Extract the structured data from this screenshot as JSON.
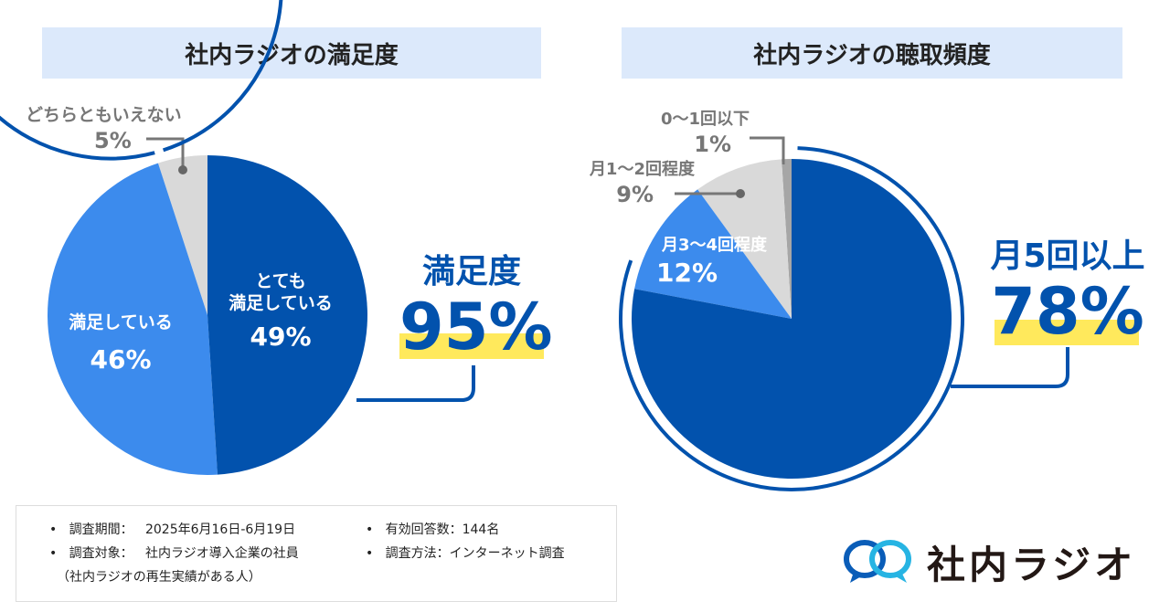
{
  "chart_data": [
    {
      "type": "pie",
      "title": "社内ラジオの満足度",
      "slices": [
        {
          "label": "とても満足している",
          "value": 49,
          "color": "#0252ad"
        },
        {
          "label": "満足している",
          "value": 46,
          "color": "#3c8bed"
        },
        {
          "label": "どちらともいえない",
          "value": 5,
          "color": "#d9d9d9"
        }
      ],
      "summary_label": "満足度",
      "summary_value": "95%"
    },
    {
      "type": "pie",
      "title": "社内ラジオの聴取頻度",
      "slices": [
        {
          "label": "月5回以上",
          "value": 78,
          "color": "#0252ad"
        },
        {
          "label": "月3〜4回程度",
          "value": 12,
          "color": "#3c8bed"
        },
        {
          "label": "月1〜2回程度",
          "value": 9,
          "color": "#d9d9d9"
        },
        {
          "label": "0〜1回以下",
          "value": 1,
          "color": "#a6a6a6"
        }
      ],
      "summary_label": "月5回以上",
      "summary_value": "78%"
    }
  ],
  "labels": {
    "c1": {
      "s0a": "とても",
      "s0b": "満足している",
      "s0v": "49%",
      "s1": "満足している",
      "s1v": "46%",
      "s2": "どちらともいえない",
      "s2v": "5%"
    },
    "c2": {
      "s1": "月3〜4回程度",
      "s1v": "12%",
      "s2": "月1〜2回程度",
      "s2v": "9%",
      "s3": "0〜1回以下",
      "s3v": "1%"
    }
  },
  "notes": {
    "period_label": "調査期間：",
    "period": "2025年6月16日-6月19日",
    "target_label": "調査対象：",
    "target": "社内ラジオ導入企業の社員",
    "target_note": "（社内ラジオの再生実績がある人）",
    "responses": "有効回答数：144名",
    "method": "調査方法：インターネット調査"
  },
  "logo": {
    "text": "社内ラジオ"
  }
}
